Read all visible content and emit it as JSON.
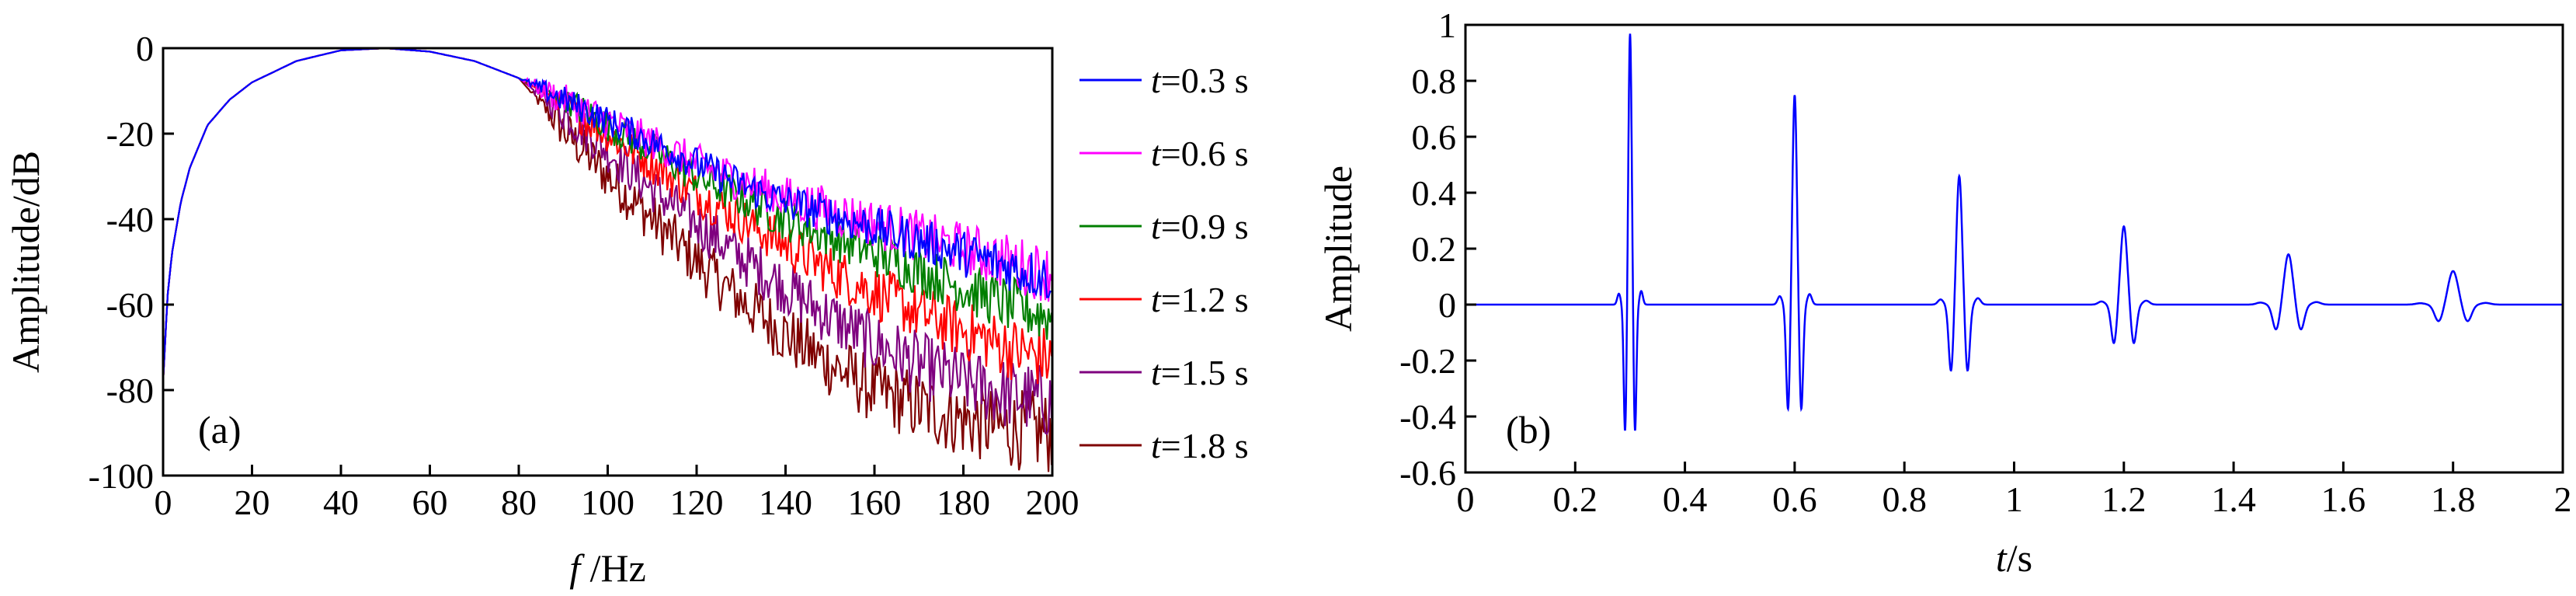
{
  "chart_data": [
    {
      "type": "line",
      "panel_label": "(a)",
      "xlabel": {
        "italic": "f",
        "rest": " /Hz"
      },
      "ylabel": "Amplitude/dB",
      "xlim": [
        0,
        200
      ],
      "ylim": [
        -100,
        0
      ],
      "xticks": [
        0,
        20,
        40,
        60,
        80,
        100,
        120,
        140,
        160,
        180,
        200
      ],
      "yticks": [
        0,
        -20,
        -40,
        -60,
        -80,
        -100
      ],
      "legend_position": "right-outside",
      "series": [
        {
          "name": "t=0.3 s",
          "name_italic": "t",
          "name_rest": "=0.3 s",
          "color": "#0000ff",
          "noise_start": 80,
          "noise": 3,
          "x": [
            0,
            1,
            2,
            4,
            6,
            10,
            15,
            20,
            30,
            40,
            50,
            60,
            70,
            80,
            90,
            100,
            110,
            120,
            130,
            140,
            150,
            160,
            170,
            180,
            190,
            200
          ],
          "y": [
            -78,
            -58,
            -48,
            -36,
            -28,
            -18,
            -12,
            -8,
            -3,
            -0.5,
            0,
            -0.8,
            -3,
            -7,
            -12,
            -17,
            -22,
            -27,
            -32,
            -36,
            -39,
            -42,
            -45,
            -48,
            -51,
            -54
          ]
        },
        {
          "name": "t=0.6 s",
          "name_italic": "t",
          "name_rest": "=0.6 s",
          "color": "#ff00ff",
          "noise_start": 80,
          "noise": 3.5,
          "x": [
            0,
            1,
            2,
            4,
            6,
            10,
            15,
            20,
            30,
            40,
            50,
            60,
            70,
            80,
            90,
            100,
            110,
            120,
            130,
            140,
            150,
            160,
            170,
            180,
            190,
            200
          ],
          "y": [
            -78,
            -58,
            -48,
            -36,
            -28,
            -18,
            -12,
            -8,
            -3,
            -0.5,
            0,
            -0.8,
            -3,
            -7,
            -12,
            -17,
            -22,
            -27,
            -31,
            -35,
            -38,
            -41,
            -44,
            -47,
            -50,
            -53
          ]
        },
        {
          "name": "t=0.9 s",
          "name_italic": "t",
          "name_rest": "=0.9 s",
          "color": "#007f00",
          "noise_start": 85,
          "noise": 3.5,
          "x": [
            0,
            1,
            2,
            4,
            6,
            10,
            15,
            20,
            30,
            40,
            50,
            60,
            70,
            80,
            90,
            100,
            110,
            120,
            130,
            140,
            150,
            160,
            170,
            180,
            190,
            200
          ],
          "y": [
            -78,
            -58,
            -48,
            -36,
            -28,
            -18,
            -12,
            -8,
            -3,
            -0.5,
            0,
            -0.8,
            -3,
            -7,
            -12,
            -18,
            -24,
            -30,
            -35,
            -40,
            -44,
            -48,
            -52,
            -56,
            -60,
            -63
          ]
        },
        {
          "name": "t=1.2 s",
          "name_italic": "t",
          "name_rest": "=1.2 s",
          "color": "#ff0000",
          "noise_start": 85,
          "noise": 4,
          "x": [
            0,
            1,
            2,
            4,
            6,
            10,
            15,
            20,
            30,
            40,
            50,
            60,
            70,
            80,
            90,
            100,
            110,
            120,
            130,
            140,
            150,
            160,
            170,
            180,
            190,
            200
          ],
          "y": [
            -78,
            -58,
            -48,
            -36,
            -28,
            -18,
            -12,
            -8,
            -3,
            -0.5,
            0,
            -0.8,
            -3,
            -7,
            -13,
            -20,
            -27,
            -34,
            -40,
            -46,
            -52,
            -57,
            -62,
            -66,
            -70,
            -73
          ]
        },
        {
          "name": "t=1.5 s",
          "name_italic": "t",
          "name_rest": "=1.5 s",
          "color": "#7f007f",
          "noise_start": 82,
          "noise": 4.5,
          "x": [
            0,
            1,
            2,
            4,
            6,
            10,
            15,
            20,
            30,
            40,
            50,
            60,
            70,
            80,
            90,
            100,
            110,
            120,
            130,
            140,
            150,
            160,
            170,
            180,
            190,
            200
          ],
          "y": [
            -78,
            -58,
            -48,
            -36,
            -28,
            -18,
            -12,
            -8,
            -3,
            -0.5,
            0,
            -0.8,
            -3,
            -7,
            -15,
            -24,
            -33,
            -41,
            -49,
            -56,
            -63,
            -69,
            -74,
            -78,
            -81,
            -83
          ]
        },
        {
          "name": "t=1.8 s",
          "name_italic": "t",
          "name_rest": "=1.8 s",
          "color": "#7f0000",
          "noise_start": 82,
          "noise": 5,
          "x": [
            0,
            1,
            2,
            4,
            6,
            10,
            15,
            20,
            30,
            40,
            50,
            60,
            70,
            80,
            90,
            100,
            110,
            120,
            130,
            140,
            150,
            160,
            170,
            180,
            190,
            200
          ],
          "y": [
            -78,
            -58,
            -48,
            -36,
            -28,
            -18,
            -12,
            -8,
            -3,
            -0.5,
            0,
            -0.8,
            -3,
            -7,
            -19,
            -30,
            -40,
            -50,
            -59,
            -67,
            -74,
            -80,
            -84,
            -87,
            -89,
            -90
          ]
        }
      ]
    },
    {
      "type": "line",
      "panel_label": "(b)",
      "xlabel": {
        "italic": "t",
        "rest": "/s"
      },
      "ylabel": "Amplitude",
      "xlim": [
        0,
        2
      ],
      "ylim": [
        -0.6,
        1
      ],
      "xticks": [
        0,
        0.2,
        0.4,
        0.6,
        0.8,
        1,
        1.2,
        1.4,
        1.6,
        1.8,
        2
      ],
      "yticks": [
        1,
        0.8,
        0.6,
        0.4,
        0.2,
        0,
        -0.2,
        -0.4,
        -0.6
      ],
      "series": [
        {
          "name": "",
          "color": "#0000ff",
          "pulses": [
            {
              "t": 0.3,
              "amp": 0.97,
              "neg": -0.46,
              "width": 0.012
            },
            {
              "t": 0.6,
              "amp": 0.75,
              "neg": -0.38,
              "width": 0.016
            },
            {
              "t": 0.9,
              "amp": 0.46,
              "neg": -0.24,
              "width": 0.02
            },
            {
              "t": 1.2,
              "amp": 0.28,
              "neg": -0.14,
              "width": 0.024
            },
            {
              "t": 1.5,
              "amp": 0.18,
              "neg": -0.09,
              "width": 0.03
            },
            {
              "t": 1.8,
              "amp": 0.12,
              "neg": -0.06,
              "width": 0.035
            }
          ]
        }
      ]
    }
  ]
}
